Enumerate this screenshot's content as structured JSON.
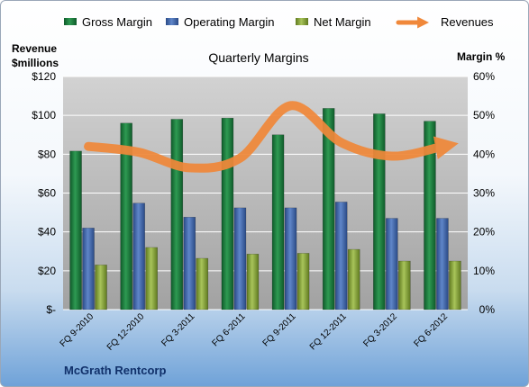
{
  "chart_data": {
    "type": "bar",
    "title": "Quarterly Margins",
    "categories": [
      "FQ 9-2010",
      "FQ 12-2010",
      "FQ 3-2011",
      "FQ 6-2011",
      "FQ 9-2011",
      "FQ 12-2011",
      "FQ 3-2012",
      "FQ 6-2012"
    ],
    "series": [
      {
        "name": "Gross Margin",
        "axis": "right",
        "unit": "%",
        "color": "#1a7a3c",
        "values": [
          40.8,
          48.0,
          49.0,
          49.3,
          45.0,
          51.8,
          50.4,
          48.5
        ]
      },
      {
        "name": "Operating Margin",
        "axis": "right",
        "unit": "%",
        "color": "#3e63a8",
        "values": [
          21.0,
          27.4,
          23.8,
          26.2,
          26.2,
          27.7,
          23.5,
          23.5
        ]
      },
      {
        "name": "Net Margin",
        "axis": "right",
        "unit": "%",
        "color": "#8aa83a",
        "values": [
          11.5,
          16.0,
          13.2,
          14.3,
          14.5,
          15.5,
          12.5,
          12.5
        ]
      },
      {
        "name": "Revenues",
        "axis": "left",
        "type": "line",
        "unit": "$millions",
        "color": "#f0883a",
        "values": [
          84,
          81,
          73,
          78,
          105,
          86,
          79,
          84
        ]
      }
    ],
    "y_left": {
      "label_line1": "Revenue",
      "label_line2": "$millions",
      "range": [
        0,
        120
      ],
      "ticks": [
        "$-",
        "$20",
        "$40",
        "$60",
        "$80",
        "$100",
        "$120"
      ]
    },
    "y_right": {
      "label": "Margin %",
      "range": [
        0,
        60
      ],
      "ticks": [
        "0%",
        "10%",
        "20%",
        "30%",
        "40%",
        "50%",
        "60%"
      ]
    },
    "legend": {
      "position": "top",
      "entries": [
        "Gross Margin",
        "Operating Margin",
        "Net Margin",
        "Revenues"
      ]
    },
    "grid": true,
    "footer": "McGrath Rentcorp"
  }
}
